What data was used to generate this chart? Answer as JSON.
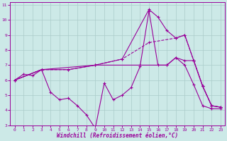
{
  "xlabel": "Windchill (Refroidissement éolien,°C)",
  "xlim": [
    -0.5,
    23.5
  ],
  "ylim": [
    3,
    11.2
  ],
  "xticks": [
    0,
    1,
    2,
    3,
    4,
    5,
    6,
    7,
    8,
    9,
    10,
    11,
    12,
    13,
    14,
    15,
    16,
    17,
    18,
    19,
    20,
    21,
    22,
    23
  ],
  "yticks": [
    3,
    4,
    5,
    6,
    7,
    8,
    9,
    10,
    11
  ],
  "background_color": "#cce9e7",
  "grid_color": "#b0d4d2",
  "line_color": "#990099",
  "lines": [
    {
      "x": [
        0,
        1,
        2,
        3,
        4,
        5,
        6,
        7,
        8,
        9,
        10,
        11,
        12,
        13,
        14,
        15,
        16,
        17,
        18,
        19,
        20,
        21,
        22,
        23
      ],
      "y": [
        6.0,
        6.4,
        6.3,
        6.7,
        5.2,
        4.7,
        4.8,
        4.3,
        3.7,
        2.8,
        5.8,
        4.7,
        5.0,
        5.5,
        6.9,
        10.6,
        7.0,
        7.0,
        7.5,
        7.0,
        5.7,
        4.3,
        4.1,
        4.1
      ]
    },
    {
      "x": [
        0,
        3,
        6,
        9,
        12,
        15,
        18,
        19,
        20,
        21,
        22,
        23
      ],
      "y": [
        6.0,
        6.7,
        6.7,
        7.0,
        7.4,
        8.5,
        8.8,
        9.0,
        7.3,
        5.6,
        4.3,
        4.2
      ]
    },
    {
      "x": [
        0,
        3,
        6,
        9,
        12,
        15,
        16,
        17,
        18,
        19,
        20,
        21,
        22,
        23
      ],
      "y": [
        6.0,
        6.7,
        6.7,
        7.0,
        7.4,
        10.7,
        10.2,
        9.3,
        8.8,
        9.0,
        7.3,
        5.6,
        4.3,
        4.2
      ]
    },
    {
      "x": [
        0,
        3,
        9,
        14,
        17,
        18,
        19,
        20,
        21,
        22,
        23
      ],
      "y": [
        6.0,
        6.7,
        7.0,
        7.0,
        7.0,
        7.5,
        7.3,
        7.3,
        5.6,
        4.3,
        4.2
      ]
    }
  ]
}
